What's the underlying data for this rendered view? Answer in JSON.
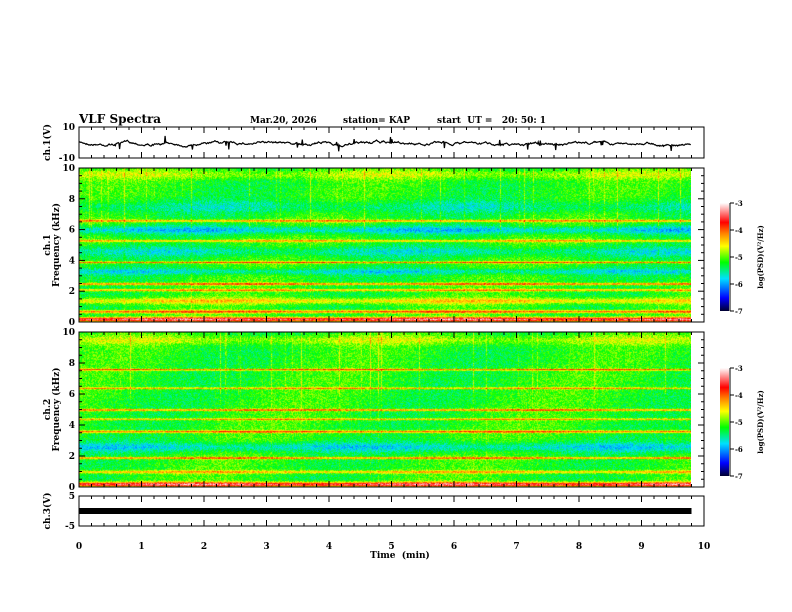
{
  "chart_data": {
    "type": "heatmap",
    "title": "VLF Spectra",
    "date": "Mar.20, 2026",
    "station": "station= KAP",
    "start_ut": "start  UT =   20: 50: 1",
    "xlabel": "Time  (min)",
    "xlim": [
      0,
      10
    ],
    "xticks": [
      "0",
      "1",
      "2",
      "3",
      "4",
      "5",
      "6",
      "7",
      "8",
      "9",
      "10"
    ],
    "data_end_min": 9.8,
    "panels": [
      {
        "id": "ch1-waveform",
        "type": "line",
        "ylabel": "ch.1(V)",
        "ylim": [
          -10,
          10
        ],
        "yticks": [
          "10",
          "-10"
        ]
      },
      {
        "id": "ch1-spectrogram",
        "type": "heatmap",
        "ylabel": "ch.1\nFrequency  (kHz)",
        "ylabel_top": "ch.1",
        "ylabel_bottom": "Frequency  (kHz)",
        "ylim": [
          0,
          10
        ],
        "yticks": [
          "0",
          "2",
          "4",
          "6",
          "8",
          "10"
        ]
      },
      {
        "id": "ch2-spectrogram",
        "type": "heatmap",
        "ylabel_top": "ch.2",
        "ylabel_bottom": "Frequency  (kHz)",
        "ylim": [
          0,
          10
        ],
        "yticks": [
          "0",
          "2",
          "4",
          "6",
          "8",
          "10"
        ]
      },
      {
        "id": "ch3-waveform",
        "type": "line",
        "ylabel": "ch.3(V)",
        "ylim": [
          -5,
          5
        ],
        "yticks": [
          "5",
          "-5"
        ],
        "constant_value": 0
      }
    ],
    "colorbar": {
      "label": "log(PSD)(V²/Hz)",
      "range": [
        -7,
        -3
      ],
      "ticks": [
        "-3",
        "-4",
        "-5",
        "-6",
        "-7"
      ]
    }
  }
}
